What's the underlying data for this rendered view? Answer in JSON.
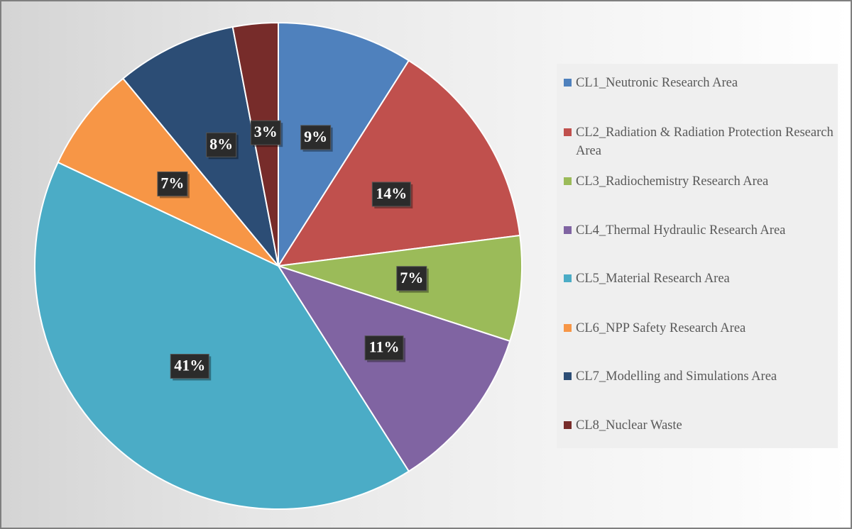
{
  "chart_data": {
    "type": "pie",
    "start_angle_deg": 0,
    "direction": "clockwise",
    "legend_position": "right",
    "slices": [
      {
        "label": "CL1_Neutronic Research Area",
        "value": 9,
        "display": "9%",
        "color": "#4f81bd"
      },
      {
        "label": "CL2_Radiation & Radiation Protection Research Area",
        "value": 14,
        "display": "14%",
        "color": "#c0504d"
      },
      {
        "label": "CL3_Radiochemistry Research Area",
        "value": 7,
        "display": "7%",
        "color": "#9bbb59"
      },
      {
        "label": "CL4_Thermal Hydraulic Research Area",
        "value": 11,
        "display": "11%",
        "color": "#8064a2"
      },
      {
        "label": "CL5_Material Research Area",
        "value": 41,
        "display": "41%",
        "color": "#4bacc6"
      },
      {
        "label": "CL6_NPP Safety Research Area",
        "value": 7,
        "display": "7%",
        "color": "#f79646"
      },
      {
        "label": "CL7_Modelling and Simulations Area",
        "value": 8,
        "display": "8%",
        "color": "#2c4d75"
      },
      {
        "label": "CL8_Nuclear Waste",
        "value": 3,
        "display": "3%",
        "color": "#772c2a"
      }
    ]
  }
}
